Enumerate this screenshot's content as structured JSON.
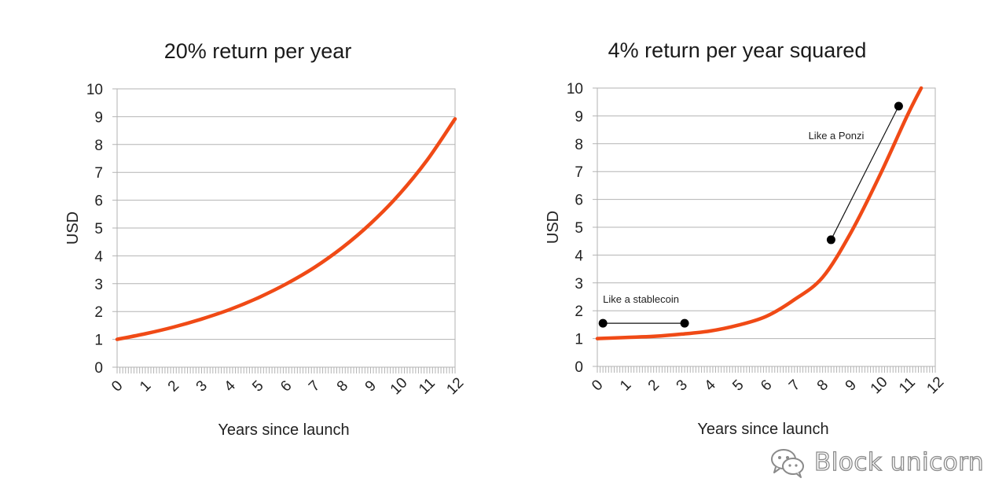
{
  "chart_data": [
    {
      "type": "line",
      "title": "20% return per year",
      "xlabel": "Years since launch",
      "ylabel": "USD",
      "xlim": [
        0,
        12
      ],
      "ylim": [
        0,
        10
      ],
      "xticks": [
        "0",
        "1",
        "2",
        "3",
        "4",
        "5",
        "6",
        "7",
        "8",
        "9",
        "10",
        "11",
        "12"
      ],
      "yticks": [
        "0",
        "1",
        "2",
        "3",
        "4",
        "5",
        "6",
        "7",
        "8",
        "9",
        "10"
      ],
      "grid": "horizontal",
      "series": [
        {
          "color": "#f04a16",
          "x": [
            0,
            1,
            2,
            3,
            4,
            5,
            6,
            7,
            8,
            9,
            10,
            11,
            12
          ],
          "y": [
            1.0,
            1.2,
            1.44,
            1.73,
            2.07,
            2.49,
            2.99,
            3.58,
            4.3,
            5.16,
            6.19,
            7.43,
            8.92
          ]
        }
      ],
      "annotations": []
    },
    {
      "type": "line",
      "title": "4% return per year squared",
      "xlabel": "Years since launch",
      "ylabel": "USD",
      "xlim": [
        0,
        12
      ],
      "ylim": [
        0,
        10
      ],
      "xticks": [
        "0",
        "1",
        "2",
        "3",
        "4",
        "5",
        "6",
        "7",
        "8",
        "9",
        "10",
        "11",
        "12"
      ],
      "yticks": [
        "0",
        "1",
        "2",
        "3",
        "4",
        "5",
        "6",
        "7",
        "8",
        "9",
        "10"
      ],
      "grid": "horizontal",
      "series": [
        {
          "color": "#f04a16",
          "x": [
            0,
            1,
            2,
            3,
            4,
            5,
            6,
            7,
            8,
            9,
            10,
            11,
            11.5
          ],
          "y": [
            1.0,
            1.04,
            1.08,
            1.16,
            1.27,
            1.48,
            1.8,
            2.4,
            3.2,
            4.8,
            6.8,
            9.0,
            10.0
          ]
        }
      ],
      "annotations": [
        {
          "text": "Like a stablecoin",
          "from": [
            0.2,
            1.55
          ],
          "to": [
            3.1,
            1.55
          ]
        },
        {
          "text": "Like a Ponzi",
          "from": [
            8.3,
            4.55
          ],
          "to": [
            10.7,
            9.35
          ]
        }
      ]
    }
  ],
  "watermark": {
    "text": "Block unicorn",
    "icon": "wechat-icon"
  }
}
